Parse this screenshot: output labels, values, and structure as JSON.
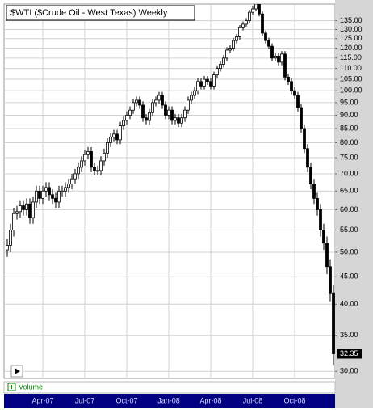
{
  "chart_data": {
    "type": "candlestick",
    "title": "$WTI ($Crude Oil - West Texas) Weekly",
    "panel_label": "Volume",
    "categories": [
      null,
      null,
      null,
      null,
      null,
      null,
      null,
      null,
      null,
      null,
      null,
      "Apr-07",
      null,
      null,
      null,
      null,
      null,
      null,
      null,
      null,
      null,
      null,
      null,
      null,
      "Jul-07",
      null,
      null,
      null,
      null,
      null,
      null,
      null,
      null,
      null,
      null,
      null,
      null,
      "Oct-07",
      null,
      null,
      null,
      null,
      null,
      null,
      null,
      null,
      null,
      null,
      null,
      null,
      "Jan-08",
      null,
      null,
      null,
      null,
      null,
      null,
      null,
      null,
      null,
      null,
      null,
      null,
      "Apr-08",
      null,
      null,
      null,
      null,
      null,
      null,
      null,
      null,
      null,
      null,
      null,
      null,
      "Jul-08",
      null,
      null,
      null,
      null,
      null,
      null,
      null,
      null,
      null,
      null,
      null,
      null,
      "Oct-08",
      null,
      null,
      null,
      null,
      null,
      null,
      null,
      null,
      null,
      null,
      null,
      null
    ],
    "open": [
      50.5,
      51.5,
      55,
      59,
      59.5,
      61,
      60,
      61.5,
      58,
      62,
      65,
      63,
      65,
      66,
      64,
      63,
      62,
      65,
      65,
      66,
      67,
      68.5,
      70,
      72,
      74,
      76,
      77,
      72,
      71,
      71,
      74,
      76.5,
      80,
      82,
      83,
      81,
      86,
      88,
      90,
      92,
      95,
      96,
      94,
      89,
      88,
      91,
      95,
      96,
      98,
      94,
      90,
      92,
      88,
      89,
      87,
      89,
      92,
      96,
      98,
      100,
      104,
      102,
      105,
      104,
      102,
      107,
      110,
      112,
      115,
      119,
      120,
      124,
      126,
      131,
      133,
      135,
      140,
      142,
      145,
      139,
      128,
      124,
      121,
      115,
      116,
      113,
      117,
      106,
      104,
      100,
      98,
      93,
      85,
      78,
      72,
      67,
      63,
      60,
      55,
      52,
      47,
      42
    ],
    "high": [
      53,
      56.5,
      60.5,
      61,
      62.5,
      62.5,
      63,
      63,
      63.5,
      66.5,
      66.5,
      66.5,
      67.5,
      67.5,
      65.5,
      64.5,
      66.5,
      66.5,
      67.5,
      68.5,
      70,
      71.5,
      73.5,
      75.5,
      77.5,
      78.5,
      78.5,
      73.5,
      72.5,
      75.5,
      78,
      81.5,
      83.5,
      84.5,
      84.5,
      87.5,
      89.5,
      91.5,
      93.5,
      96.5,
      97.5,
      97.5,
      95.5,
      90.5,
      92.5,
      96.5,
      97.5,
      99.5,
      99.5,
      95.5,
      93.5,
      93.5,
      90.5,
      90.5,
      90.5,
      93.5,
      97.5,
      99.5,
      101.5,
      105.5,
      105.5,
      106.5,
      106.5,
      105.5,
      108.5,
      111.5,
      113.5,
      116.5,
      120.5,
      121.5,
      125.5,
      127.5,
      132.5,
      134.5,
      136.5,
      141.5,
      143.5,
      146.5,
      146.5,
      140.5,
      129.5,
      125.5,
      122.5,
      117.5,
      117.5,
      118.5,
      118.5,
      107.5,
      105.5,
      101.5,
      99.5,
      94.5,
      86.5,
      79.5,
      73.5,
      68.5,
      64.5,
      61.5,
      56.5,
      53.5,
      48.5,
      43.5
    ],
    "low": [
      49,
      50,
      53.5,
      57.5,
      58,
      58.5,
      58.5,
      56.5,
      56.5,
      60.5,
      61.5,
      61.5,
      63.5,
      62.5,
      61.5,
      60.5,
      60.5,
      63.5,
      63.5,
      64.5,
      65.5,
      67,
      68.5,
      70.5,
      72.5,
      74.5,
      70.5,
      69.5,
      69.5,
      69.5,
      72.5,
      75,
      78.5,
      80.5,
      79.5,
      79.5,
      84.5,
      86.5,
      88.5,
      90.5,
      93.5,
      92.5,
      87.5,
      86.5,
      86.5,
      89.5,
      93.5,
      94.5,
      92.5,
      88.5,
      88.5,
      86.5,
      86.5,
      85.5,
      85.5,
      87.5,
      90.5,
      94.5,
      96.5,
      98.5,
      100.5,
      100.5,
      102.5,
      100.5,
      100.5,
      105.5,
      108.5,
      110.5,
      113.5,
      117.5,
      118.5,
      122.5,
      124.5,
      129.5,
      131.5,
      133.5,
      138.5,
      140.5,
      137.5,
      126.5,
      122.5,
      119.5,
      113.5,
      113.5,
      111.5,
      111.5,
      104.5,
      102.5,
      98.5,
      96.5,
      91.5,
      83.5,
      76.5,
      70.5,
      65.5,
      61.5,
      58.5,
      53.5,
      50.5,
      45.5,
      40.5,
      30.85
    ],
    "close": [
      51.5,
      55,
      59,
      59.5,
      61,
      60,
      61.5,
      58,
      62,
      65,
      63,
      65,
      66,
      64,
      63,
      62,
      65,
      65,
      66,
      67,
      68.5,
      70,
      72,
      74,
      76,
      77,
      72,
      71,
      71,
      74,
      76.5,
      80,
      82,
      83,
      81,
      86,
      88,
      90,
      92,
      95,
      96,
      94,
      89,
      88,
      91,
      95,
      96,
      98,
      94,
      90,
      92,
      88,
      89,
      87,
      89,
      92,
      96,
      98,
      100,
      104,
      102,
      105,
      104,
      102,
      107,
      110,
      112,
      115,
      119,
      120,
      124,
      126,
      131,
      133,
      135,
      140,
      142,
      145,
      139,
      128,
      124,
      121,
      115,
      116,
      113,
      117,
      106,
      104,
      100,
      98,
      93,
      85,
      78,
      72,
      67,
      63,
      60,
      55,
      52,
      47,
      42,
      32.35
    ],
    "up_color": "#ffffff",
    "down_color": "#000000",
    "log_scale": true,
    "grid": true,
    "ylim": [
      29.1,
      145
    ],
    "yticks": [
      {
        "value": 30,
        "label": "30.00"
      },
      {
        "value": 35,
        "label": "35.00"
      },
      {
        "value": 40,
        "label": "40.00"
      },
      {
        "value": 45,
        "label": "45.00"
      },
      {
        "value": 50,
        "label": "50.00"
      },
      {
        "value": 55,
        "label": "55.00"
      },
      {
        "value": 60,
        "label": "60.00"
      },
      {
        "value": 65,
        "label": "65.00"
      },
      {
        "value": 70,
        "label": "70.00"
      },
      {
        "value": 75,
        "label": "75.00"
      },
      {
        "value": 80,
        "label": "80.00"
      },
      {
        "value": 85,
        "label": "85.00"
      },
      {
        "value": 90,
        "label": "90.00"
      },
      {
        "value": 95,
        "label": "95.00"
      },
      {
        "value": 100,
        "label": "100.00"
      },
      {
        "value": 105,
        "label": "105.00"
      },
      {
        "value": 110,
        "label": "110.00"
      },
      {
        "value": 115,
        "label": "115.00"
      },
      {
        "value": 120,
        "label": "120.00"
      },
      {
        "value": 125,
        "label": "125.00"
      },
      {
        "value": 130,
        "label": "130.00"
      },
      {
        "value": 135,
        "label": "135.00"
      }
    ]
  }
}
